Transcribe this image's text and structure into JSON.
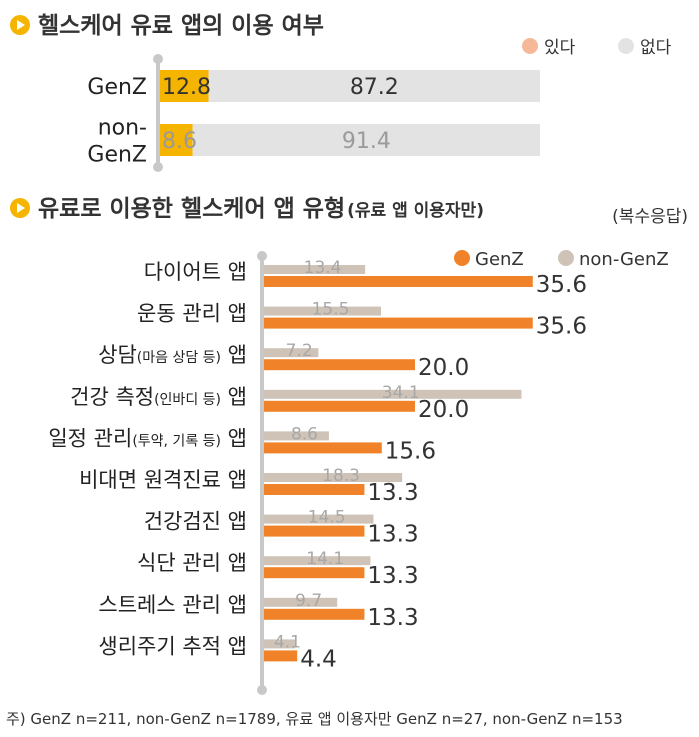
{
  "colors": {
    "accent": "#f5b400",
    "genz_bar": "#f0832a",
    "nongenz_bar": "#cfc3b7",
    "track": "#e3e3e3",
    "legend_yes": "#f5b99a",
    "legend_no": "#e3e3e3",
    "axis": "#c8c8c8"
  },
  "chart_data": [
    {
      "type": "bar",
      "orientation": "horizontal",
      "stacked": true,
      "title": "헬스케어 유료 앱의 이용 여부",
      "categories": [
        [
          "GenZ"
        ],
        [
          "non-",
          "GenZ"
        ]
      ],
      "series": [
        {
          "name": "있다",
          "values": [
            12.8,
            8.6
          ]
        },
        {
          "name": "없다",
          "values": [
            87.2,
            91.4
          ]
        }
      ],
      "xlim": [
        0,
        100
      ],
      "legend": "top-right"
    },
    {
      "type": "bar",
      "orientation": "horizontal",
      "title": "유료로 이용한 헬스케어 앱 유형",
      "subtitle": "(유료 앱 이용자만)",
      "note": "(복수응답)",
      "categories": [
        {
          "main": "다이어트 앱",
          "small": "",
          "tail": ""
        },
        {
          "main": "운동 관리 앱",
          "small": "",
          "tail": ""
        },
        {
          "main": "상담",
          "small": "(마음 상담 등)",
          "tail": " 앱"
        },
        {
          "main": "건강 측정",
          "small": "(인바디 등)",
          "tail": " 앱"
        },
        {
          "main": "일정 관리",
          "small": "(투약, 기록 등)",
          "tail": " 앱"
        },
        {
          "main": "비대면 원격진료 앱",
          "small": "",
          "tail": ""
        },
        {
          "main": "건강검진 앱",
          "small": "",
          "tail": ""
        },
        {
          "main": "식단 관리 앱",
          "small": "",
          "tail": ""
        },
        {
          "main": "스트레스 관리 앱",
          "small": "",
          "tail": ""
        },
        {
          "main": "생리주기 추적 앱",
          "small": "",
          "tail": ""
        }
      ],
      "series": [
        {
          "name": "GenZ",
          "values": [
            35.6,
            35.6,
            20.0,
            20.0,
            15.6,
            13.3,
            13.3,
            13.3,
            13.3,
            4.4
          ]
        },
        {
          "name": "non-GenZ",
          "values": [
            13.4,
            15.5,
            7.2,
            34.1,
            8.6,
            18.3,
            14.5,
            14.1,
            9.7,
            4.1
          ]
        }
      ],
      "legend": "top-right"
    }
  ],
  "footnote": "주) GenZ n=211, non-GenZ n=1789, 유료 앱 이용자만 GenZ n=27, non-GenZ n=153"
}
